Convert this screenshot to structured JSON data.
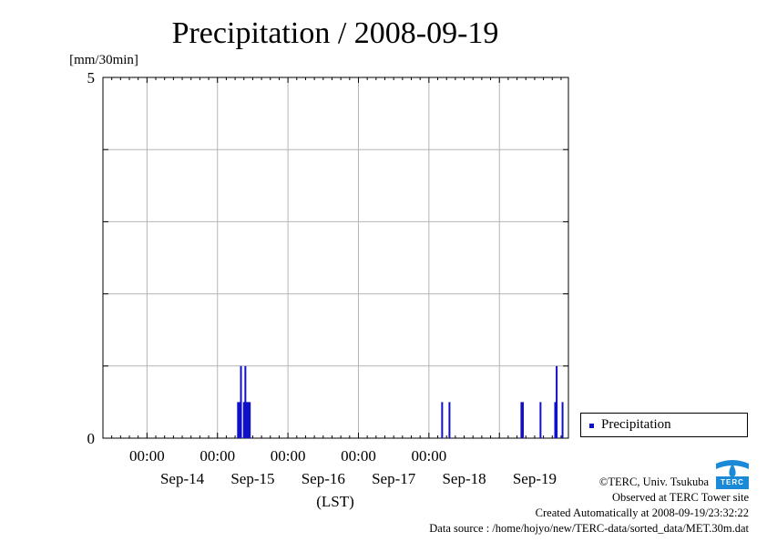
{
  "chart_data": {
    "type": "bar",
    "title": "Precipitation / 2008-09-19",
    "ylabel": "[mm/30min]",
    "xlabel": "(LST)",
    "ylim": [
      0,
      5
    ],
    "y_ticks": [
      "0",
      "5"
    ],
    "xlim": [
      "2008-09-13 09:00",
      "2008-09-19 23:30"
    ],
    "x_time_labels": [
      "00:00",
      "00:00",
      "00:00",
      "00:00",
      "00:00"
    ],
    "x_date_labels": [
      "Sep-14",
      "Sep-15",
      "Sep-16",
      "Sep-17",
      "Sep-18",
      "Sep-19"
    ],
    "grid": true,
    "legend_position": "right",
    "series": [
      {
        "name": "Precipitation",
        "color": "#1010c8",
        "points": [
          {
            "t": "2008-09-15 07:00",
            "v": 0.5
          },
          {
            "t": "2008-09-15 07:30",
            "v": 0.5
          },
          {
            "t": "2008-09-15 08:00",
            "v": 1.0
          },
          {
            "t": "2008-09-15 09:00",
            "v": 0.5
          },
          {
            "t": "2008-09-15 09:30",
            "v": 1.0
          },
          {
            "t": "2008-09-15 10:00",
            "v": 0.5
          },
          {
            "t": "2008-09-15 10:30",
            "v": 0.5
          },
          {
            "t": "2008-09-15 11:00",
            "v": 0.5
          },
          {
            "t": "2008-09-18 04:30",
            "v": 0.5
          },
          {
            "t": "2008-09-18 07:00",
            "v": 0.5
          },
          {
            "t": "2008-09-19 07:30",
            "v": 0.5
          },
          {
            "t": "2008-09-19 08:00",
            "v": 0.5
          },
          {
            "t": "2008-09-19 14:00",
            "v": 0.5
          },
          {
            "t": "2008-09-19 19:00",
            "v": 0.5
          },
          {
            "t": "2008-09-19 19:30",
            "v": 1.0
          },
          {
            "t": "2008-09-19 21:30",
            "v": 0.5
          }
        ]
      }
    ]
  },
  "legend": {
    "label": "Precipitation"
  },
  "logo": {
    "text": "TERC"
  },
  "footer": {
    "copyright": "©TERC, Univ. Tsukuba",
    "observed": "Observed at TERC Tower site",
    "created": "Created Automatically at 2008-09-19/23:32:22",
    "source": "Data source : /home/hojyo/new/TERC-data/sorted_data/MET.30m.dat"
  }
}
